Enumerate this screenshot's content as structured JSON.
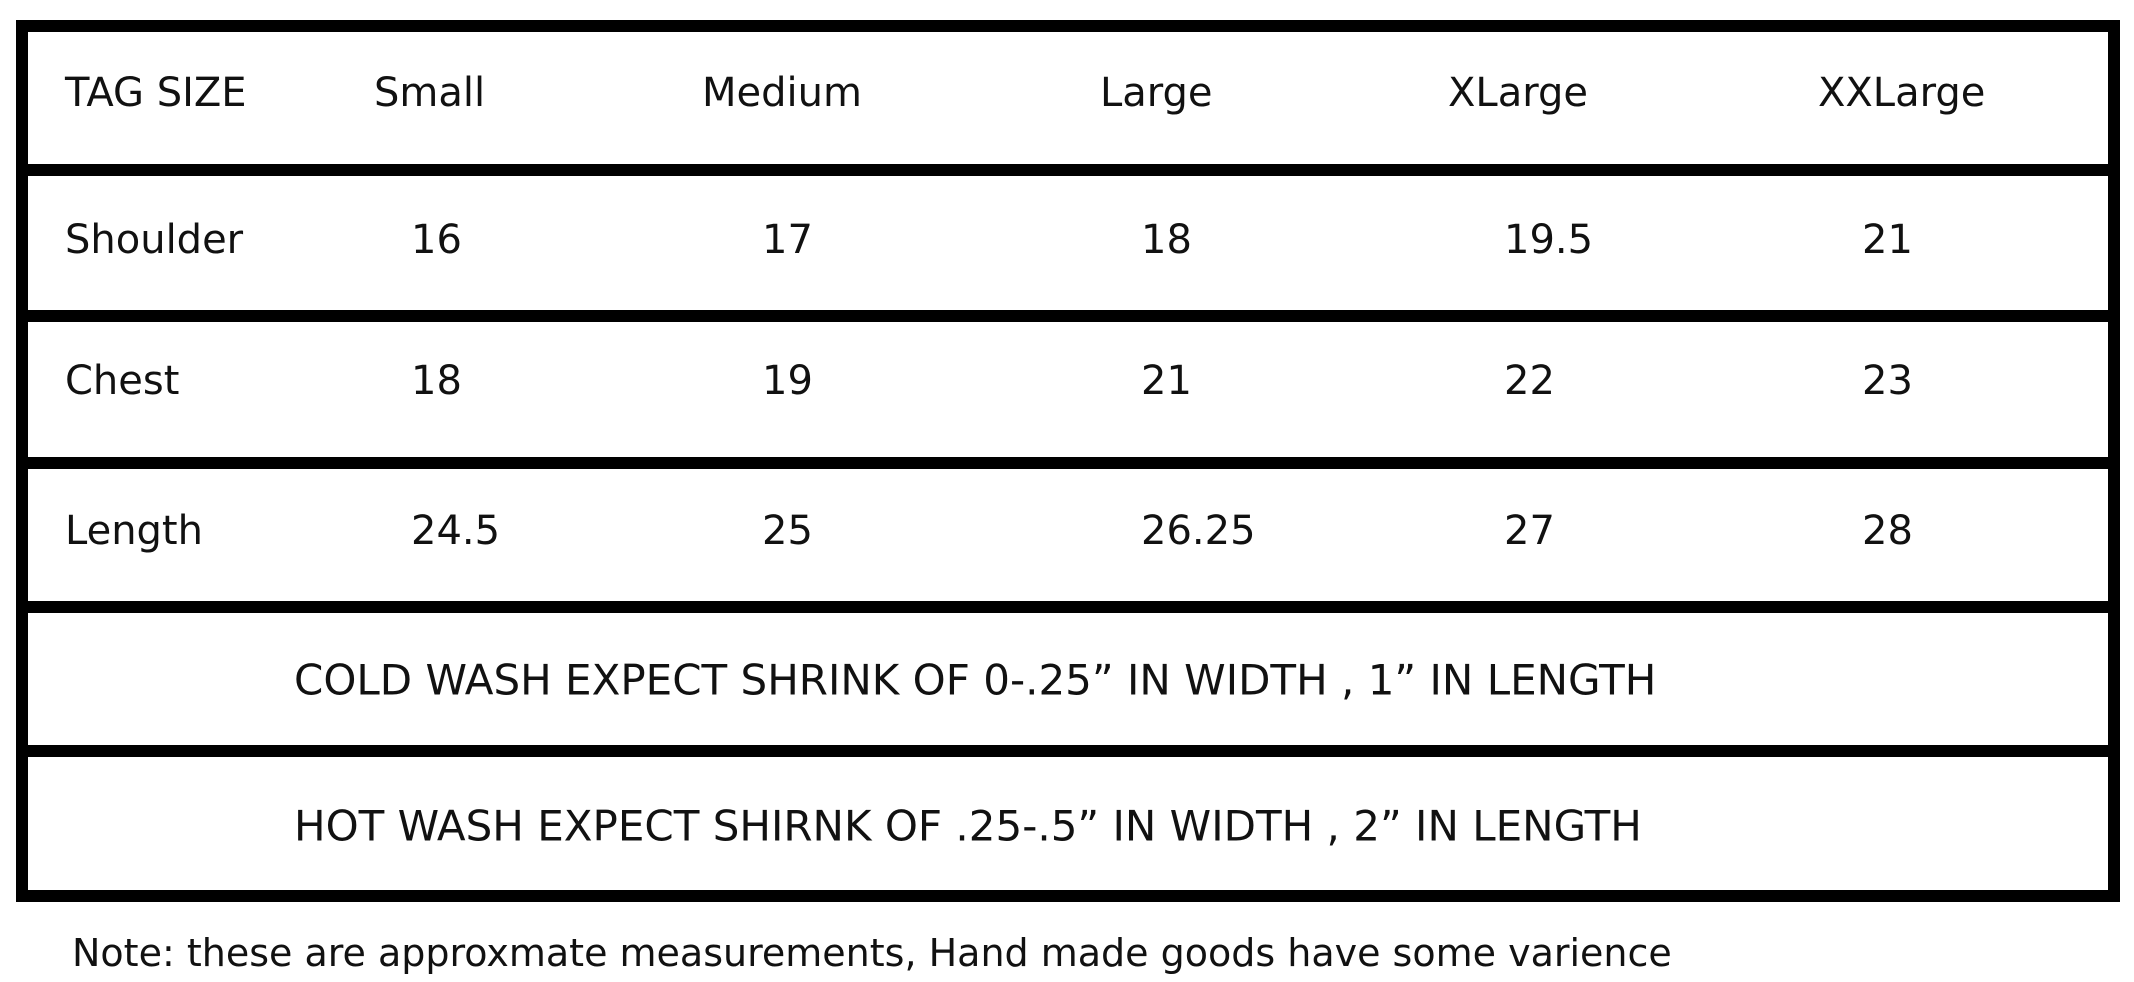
{
  "table": {
    "header": [
      "TAG SIZE",
      "Small",
      "Medium",
      "Large",
      "XLarge",
      "XXLarge"
    ],
    "rows": [
      [
        "Shoulder",
        "16",
        "17",
        "18",
        "19.5",
        "21"
      ],
      [
        "Chest",
        "18",
        "19",
        "21",
        "22",
        "23"
      ],
      [
        "Length",
        "24.5",
        "25",
        "26.25",
        "27",
        "28"
      ]
    ],
    "notes": [
      "COLD WASH EXPECT SHRINK OF 0-.25” IN WIDTH , 1” IN LENGTH",
      "HOT WASH EXPECT SHIRNK OF .25-.5” IN WIDTH , 2” IN LENGTH"
    ]
  },
  "footer": {
    "note": "Note: these are approxmate measurements, Hand made goods have some varience"
  }
}
